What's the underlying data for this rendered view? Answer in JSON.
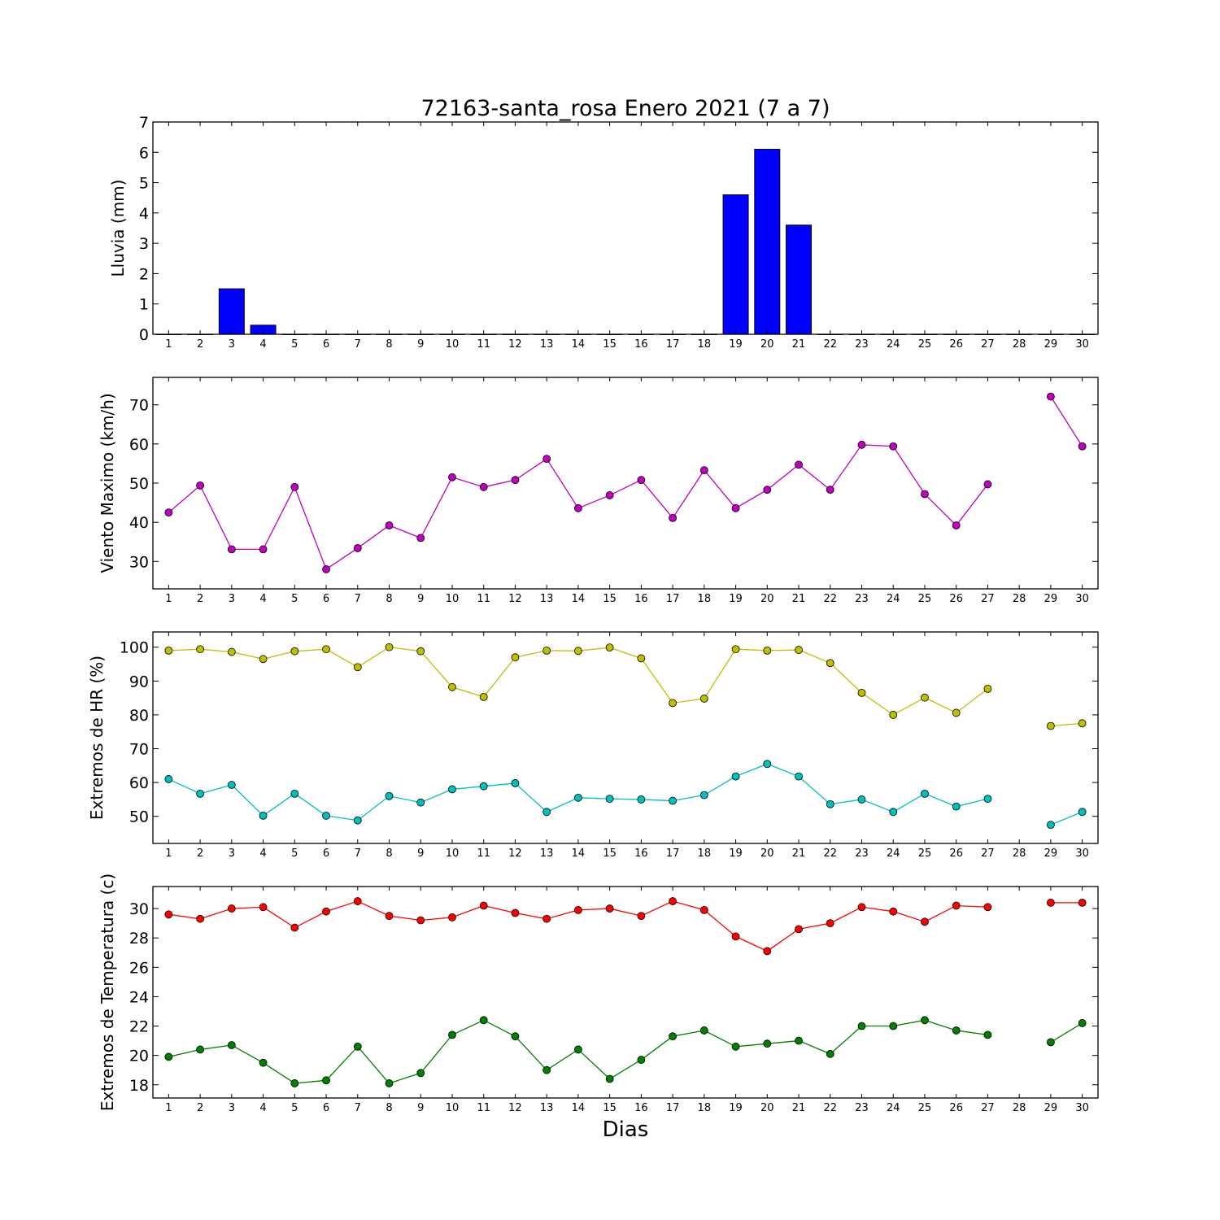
{
  "chart_data": [
    {
      "type": "bar",
      "title": "72163-santa_rosa Enero 2021  (7 a 7)",
      "ylabel": "Lluvia (mm)",
      "xlabel": "",
      "x": [
        1,
        2,
        3,
        4,
        5,
        6,
        7,
        8,
        9,
        10,
        11,
        12,
        13,
        14,
        15,
        16,
        17,
        18,
        19,
        20,
        21,
        22,
        23,
        24,
        25,
        26,
        27,
        28,
        29,
        30
      ],
      "xlim": [
        0.5,
        30.5
      ],
      "ylim": [
        0,
        7
      ],
      "yticks": [
        0,
        1,
        2,
        3,
        4,
        5,
        6,
        7
      ],
      "series": [
        {
          "color": "#0000ff",
          "values": [
            0,
            0,
            1.5,
            0.3,
            0,
            0,
            0,
            0,
            0,
            0,
            0,
            0,
            0,
            0,
            0,
            0,
            0,
            0,
            4.6,
            6.1,
            3.6,
            0,
            0,
            0,
            0,
            0,
            0,
            0,
            0,
            0
          ]
        }
      ],
      "grid": false
    },
    {
      "type": "line",
      "title": "",
      "ylabel": "Viento Maximo (km/h)",
      "xlabel": "",
      "x": [
        1,
        2,
        3,
        4,
        5,
        6,
        7,
        8,
        9,
        10,
        11,
        12,
        13,
        14,
        15,
        16,
        17,
        18,
        19,
        20,
        21,
        22,
        23,
        24,
        25,
        26,
        27,
        28,
        29,
        30
      ],
      "xlim": [
        0.5,
        30.5
      ],
      "ylim": [
        23,
        77
      ],
      "yticks": [
        30,
        40,
        50,
        60,
        70
      ],
      "series": [
        {
          "color": "#bf00bf",
          "values": [
            42.5,
            49.4,
            33.1,
            33.1,
            49,
            28,
            33.4,
            39.2,
            36,
            51.5,
            49,
            50.8,
            56.2,
            43.6,
            46.9,
            50.8,
            41.1,
            53.3,
            43.6,
            48.3,
            54.7,
            48.3,
            59.8,
            59.4,
            47.2,
            39.2,
            49.7,
            null,
            72.1,
            59.4
          ]
        }
      ],
      "grid": false
    },
    {
      "type": "line",
      "title": "",
      "ylabel": "Extremos de HR (%)",
      "xlabel": "",
      "x": [
        1,
        2,
        3,
        4,
        5,
        6,
        7,
        8,
        9,
        10,
        11,
        12,
        13,
        14,
        15,
        16,
        17,
        18,
        19,
        20,
        21,
        22,
        23,
        24,
        25,
        26,
        27,
        28,
        29,
        30
      ],
      "xlim": [
        0.5,
        30.5
      ],
      "ylim": [
        42,
        104.5
      ],
      "yticks": [
        50,
        60,
        70,
        80,
        90,
        100
      ],
      "series": [
        {
          "color": "#bfbf00",
          "values": [
            99,
            99.4,
            98.6,
            96.5,
            98.8,
            99.4,
            94.1,
            100,
            98.8,
            88.2,
            85.3,
            97,
            99,
            98.9,
            99.9,
            96.7,
            83.5,
            84.8,
            99.4,
            99,
            99.2,
            95.3,
            86.5,
            80,
            85.1,
            80.6,
            87.7,
            null,
            76.7,
            77.5
          ]
        },
        {
          "color": "#00bfbf",
          "values": [
            61,
            56.7,
            59.3,
            50.2,
            56.7,
            50.2,
            48.8,
            56,
            54.1,
            58,
            58.9,
            59.8,
            51.3,
            55.5,
            55.2,
            55,
            54.6,
            56.3,
            61.8,
            65.5,
            61.8,
            53.6,
            55,
            51.3,
            56.7,
            52.9,
            55.2,
            null,
            47.5,
            51.3
          ]
        }
      ],
      "grid": false
    },
    {
      "type": "line",
      "title": "",
      "ylabel": "Extremos de Temperatura (c)",
      "xlabel": "Dias",
      "x": [
        1,
        2,
        3,
        4,
        5,
        6,
        7,
        8,
        9,
        10,
        11,
        12,
        13,
        14,
        15,
        16,
        17,
        18,
        19,
        20,
        21,
        22,
        23,
        24,
        25,
        26,
        27,
        28,
        29,
        30
      ],
      "xlim": [
        0.5,
        30.5
      ],
      "ylim": [
        17.1,
        31.5
      ],
      "yticks": [
        18,
        20,
        22,
        24,
        26,
        28,
        30
      ],
      "series": [
        {
          "color": "#ff0000",
          "values": [
            29.6,
            29.3,
            30,
            30.1,
            28.7,
            29.8,
            30.5,
            29.5,
            29.2,
            29.4,
            30.2,
            29.7,
            29.3,
            29.9,
            30,
            29.5,
            30.5,
            29.9,
            28.1,
            27.1,
            28.6,
            29,
            30.1,
            29.8,
            29.1,
            30.2,
            30.1,
            null,
            30.4,
            30.4
          ]
        },
        {
          "color": "#008000",
          "values": [
            19.9,
            20.4,
            20.7,
            19.5,
            18.1,
            18.3,
            20.6,
            18.1,
            18.8,
            21.4,
            22.4,
            21.3,
            19,
            20.4,
            18.4,
            19.7,
            21.3,
            21.7,
            20.6,
            20.8,
            21,
            20.1,
            22,
            22,
            22.4,
            21.7,
            21.4,
            null,
            20.9,
            22.2
          ]
        }
      ],
      "grid": false
    }
  ]
}
